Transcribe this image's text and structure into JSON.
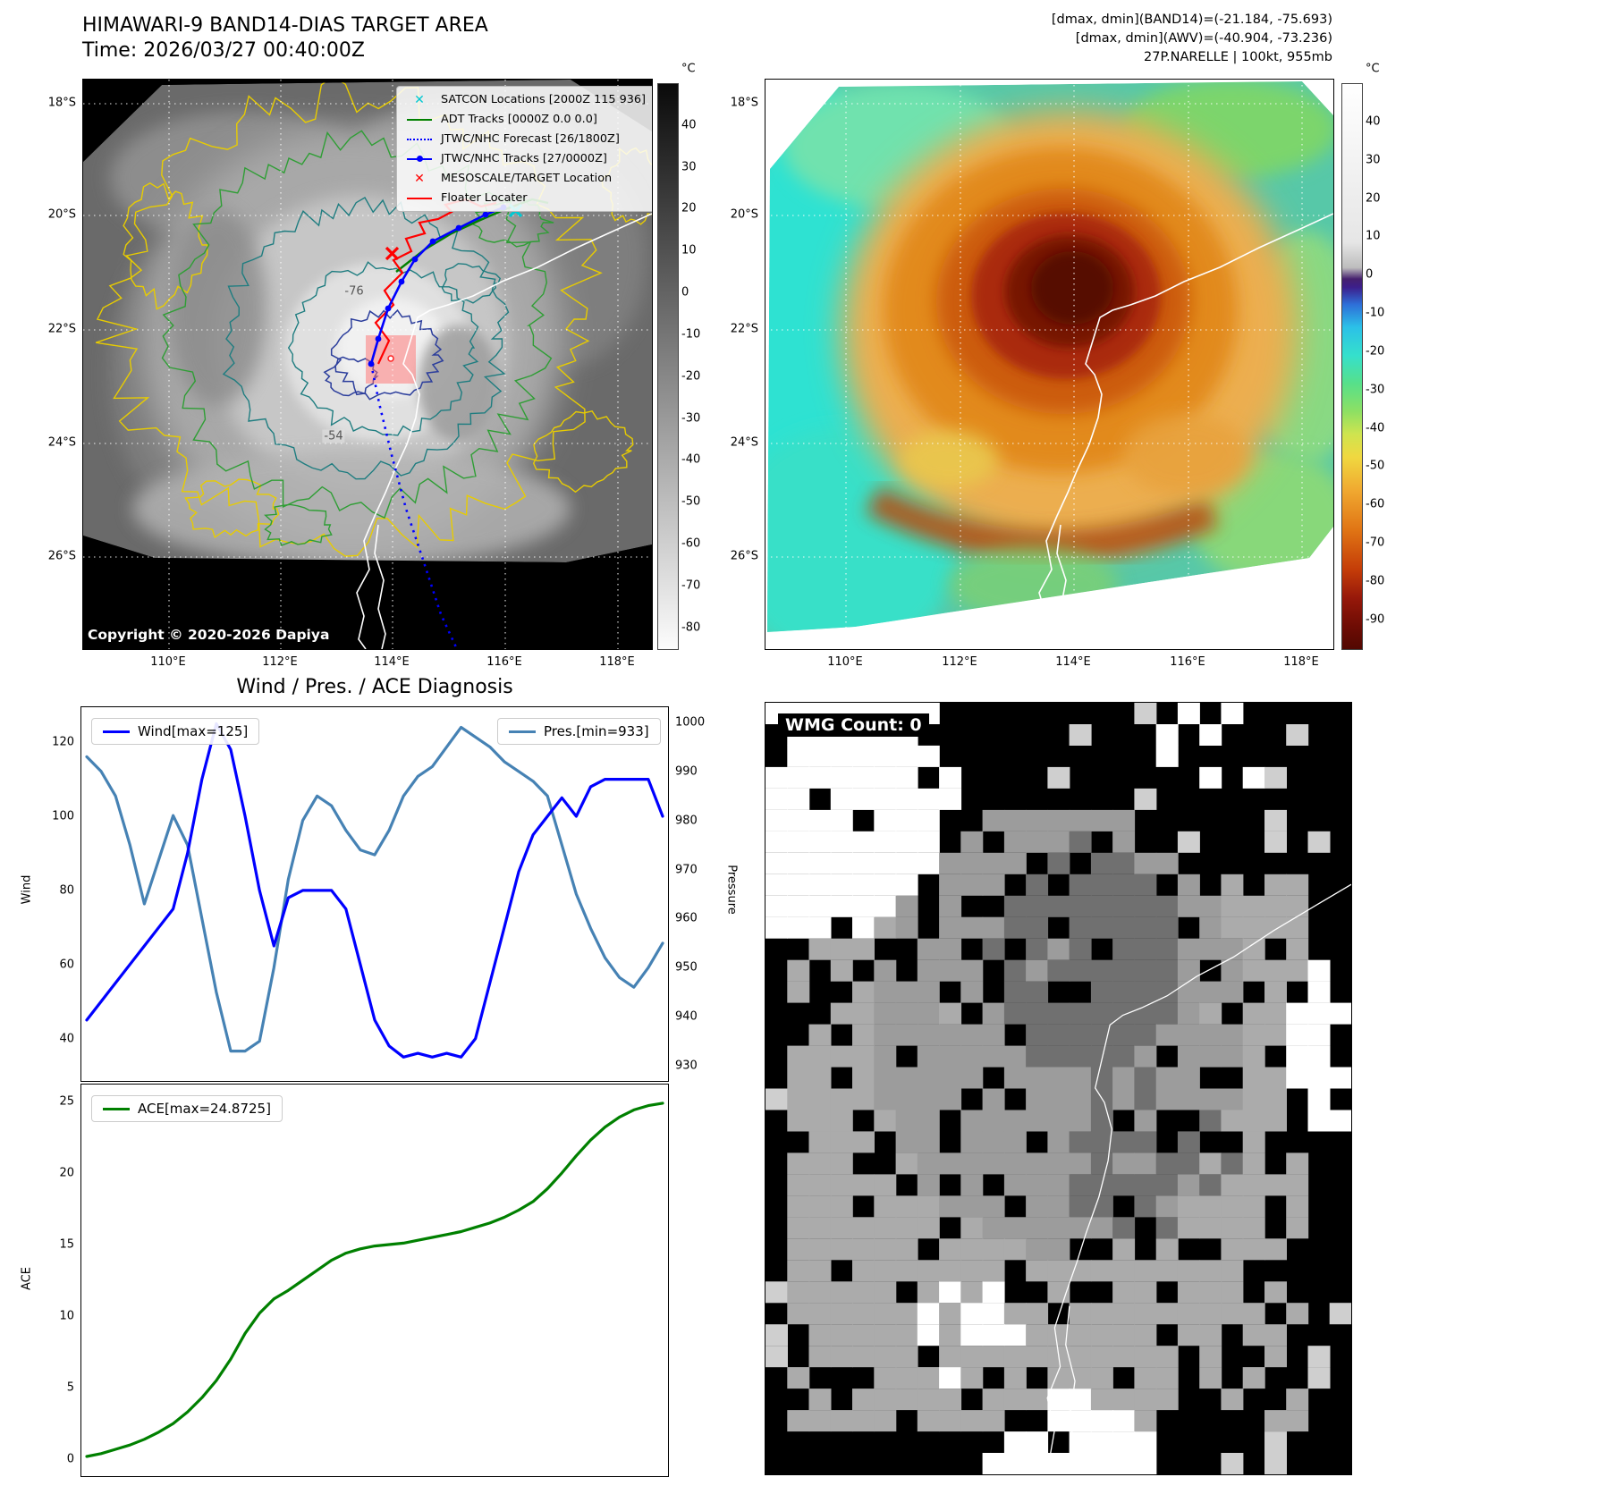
{
  "panel1": {
    "title": "HIMAWARI-9 BAND14-DIAS TARGET AREA",
    "time": "Time: 2026/03/27 00:40:00Z",
    "copyright": "Copyright © 2020-2026 Dapiya",
    "legend": [
      {
        "label": "SATCON Locations [2000Z 115 936]",
        "marker": "x",
        "color": "#00c8d2"
      },
      {
        "label": "ADT Tracks [0000Z 0.0 0.0]",
        "marker": "line",
        "color": "#008000"
      },
      {
        "label": "JTWC/NHC Forecast [26/1800Z]",
        "marker": "dotted-line",
        "color": "#0000ff"
      },
      {
        "label": "JTWC/NHC Tracks [27/0000Z]",
        "marker": "line-dot",
        "color": "#0000ff"
      },
      {
        "label": "MESOSCALE/TARGET Location",
        "marker": "x",
        "color": "#ff0000"
      },
      {
        "label": "Floater Locater",
        "marker": "line",
        "color": "#ff0000"
      }
    ],
    "lat_ticks": [
      "18°S",
      "20°S",
      "22°S",
      "24°S",
      "26°S"
    ],
    "lon_ticks": [
      "110°E",
      "112°E",
      "114°E",
      "116°E",
      "118°E"
    ],
    "colorbar": {
      "unit": "°C",
      "ticks": [
        "40",
        "30",
        "20",
        "10",
        "0",
        "-10",
        "-20",
        "-30",
        "-40",
        "-50",
        "-60",
        "-70",
        "-80"
      ]
    },
    "contour_labels": [
      "-76",
      "-54"
    ]
  },
  "panel2": {
    "header_lines": [
      "[dmax, dmin](BAND14)=(-21.184, -75.693)",
      "[dmax, dmin](AWV)=(-40.904, -73.236)",
      "27P.NARELLE | 100kt, 955mb"
    ],
    "lat_ticks": [
      "18°S",
      "20°S",
      "22°S",
      "24°S",
      "26°S"
    ],
    "lon_ticks": [
      "110°E",
      "112°E",
      "114°E",
      "116°E",
      "118°E"
    ],
    "colorbar": {
      "unit": "°C",
      "ticks": [
        "40",
        "30",
        "20",
        "10",
        "0",
        "-10",
        "-20",
        "-30",
        "-40",
        "-50",
        "-60",
        "-70",
        "-80",
        "-90"
      ]
    }
  },
  "panel3": {
    "title": "Wind / Pres. / ACE Diagnosis",
    "wind_axis_label": "Wind",
    "pressure_axis_label": "Pressure",
    "ace_axis_label": "ACE"
  },
  "panel4": {
    "label": "WMG Count: 0"
  },
  "chart_data": [
    {
      "id": "wind-pressure",
      "type": "line",
      "title": "Wind / Pres. / ACE Diagnosis",
      "x_axis": {
        "label": "",
        "tick_labels_visible": false,
        "x_is_index": true
      },
      "series": [
        {
          "name": "Wind[max=125]",
          "color": "#0000ff",
          "axis": "left",
          "values": [
            45,
            50,
            55,
            60,
            65,
            70,
            75,
            90,
            110,
            125,
            118,
            100,
            80,
            65,
            78,
            80,
            80,
            80,
            75,
            60,
            45,
            38,
            35,
            36,
            35,
            36,
            35,
            40,
            55,
            70,
            85,
            95,
            100,
            105,
            100,
            108,
            110,
            110,
            110,
            110,
            100
          ]
        },
        {
          "name": "Pres.[min=933]",
          "color": "#4682b4",
          "axis": "right",
          "values": [
            993,
            990,
            985,
            975,
            963,
            972,
            981,
            975,
            960,
            945,
            933,
            933,
            935,
            950,
            968,
            980,
            985,
            983,
            978,
            974,
            973,
            978,
            985,
            989,
            991,
            995,
            999,
            997,
            995,
            992,
            990,
            988,
            985,
            975,
            965,
            958,
            952,
            948,
            946,
            950,
            955
          ]
        }
      ],
      "left_axis": {
        "label": "Wind",
        "ticks": [
          40,
          60,
          80,
          100,
          120
        ],
        "range": [
          30,
          128
        ]
      },
      "right_axis": {
        "label": "Pressure",
        "ticks": [
          930,
          940,
          950,
          960,
          970,
          980,
          990,
          1000
        ],
        "range": [
          928,
          1002
        ]
      },
      "legend_positions": {
        "wind": "upper left",
        "pres": "upper right"
      },
      "grid": false
    },
    {
      "id": "ace",
      "type": "line",
      "x_axis": {
        "label": "",
        "tick_labels_visible": false,
        "x_is_index": true
      },
      "series": [
        {
          "name": "ACE[max=24.8725]",
          "color": "#008000",
          "axis": "left",
          "values": [
            0.2,
            0.4,
            0.7,
            1.0,
            1.4,
            1.9,
            2.5,
            3.3,
            4.3,
            5.5,
            7.0,
            8.8,
            10.2,
            11.2,
            11.8,
            12.5,
            13.2,
            13.9,
            14.4,
            14.7,
            14.9,
            15.0,
            15.1,
            15.3,
            15.5,
            15.7,
            15.9,
            16.2,
            16.5,
            16.9,
            17.4,
            18.0,
            18.9,
            20.0,
            21.2,
            22.3,
            23.2,
            23.9,
            24.4,
            24.7,
            24.8725
          ]
        }
      ],
      "left_axis": {
        "label": "ACE",
        "ticks": [
          0,
          5,
          10,
          15,
          20,
          25
        ],
        "range": [
          -0.8,
          25.8
        ]
      },
      "legend_positions": {
        "ace": "upper left"
      },
      "grid": false
    }
  ]
}
